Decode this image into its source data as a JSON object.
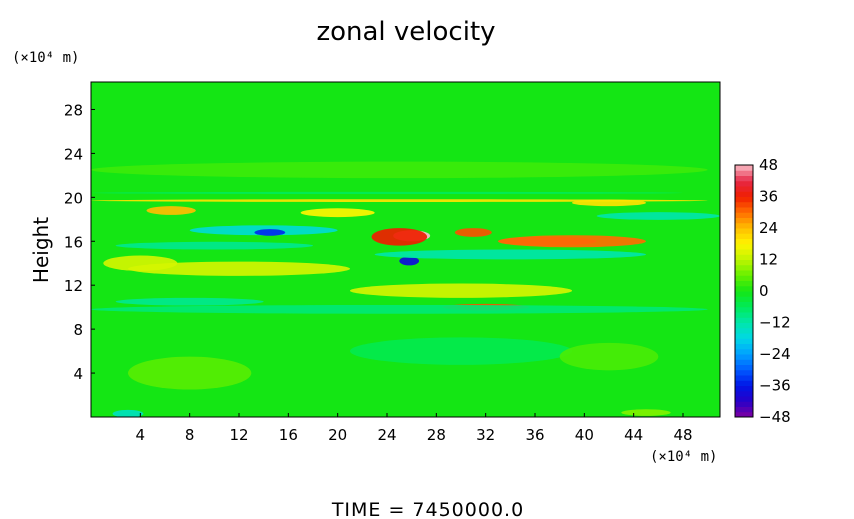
{
  "chart_data": {
    "type": "heatmap",
    "title": "zonal velocity",
    "ylabel": "Height",
    "x_unit_label": "(×10⁴ m)",
    "y_unit_label": "(×10⁴ m)",
    "xlim": [
      0,
      51
    ],
    "ylim": [
      0,
      30.5
    ],
    "x_ticks": [
      4,
      8,
      12,
      16,
      20,
      24,
      28,
      32,
      36,
      40,
      44,
      48
    ],
    "y_ticks": [
      4,
      8,
      12,
      16,
      20,
      24,
      28
    ],
    "colorbar": {
      "min": -48,
      "max": 48,
      "ticks": [
        48,
        36,
        24,
        12,
        0,
        -12,
        -24,
        -36,
        -48
      ]
    },
    "features": [
      {
        "cx": 26.0,
        "cy": 16.5,
        "w": 3.0,
        "h": 1.0,
        "v": 48
      },
      {
        "cx": 37.0,
        "cy": 16.0,
        "w": 8.0,
        "h": 0.8,
        "v": 42
      },
      {
        "cx": 25.0,
        "cy": 16.4,
        "w": 4.5,
        "h": 1.6,
        "v": 36
      },
      {
        "cx": 39.0,
        "cy": 16.0,
        "w": 12.0,
        "h": 1.1,
        "v": 30
      },
      {
        "cx": 31.0,
        "cy": 16.8,
        "w": 3.0,
        "h": 0.8,
        "v": 32
      },
      {
        "cx": 32.0,
        "cy": 10.0,
        "w": 7.0,
        "h": 0.6,
        "v": 32
      },
      {
        "cx": 42.0,
        "cy": 19.5,
        "w": 6.0,
        "h": 0.6,
        "v": 20
      },
      {
        "cx": 6.5,
        "cy": 18.8,
        "w": 4.0,
        "h": 0.8,
        "v": 24
      },
      {
        "cx": 20.0,
        "cy": 18.6,
        "w": 6.0,
        "h": 0.8,
        "v": 18
      },
      {
        "cx": 12.0,
        "cy": 13.5,
        "w": 18.0,
        "h": 1.3,
        "v": 14
      },
      {
        "cx": 30.0,
        "cy": 11.5,
        "w": 18.0,
        "h": 1.3,
        "v": 14
      },
      {
        "cx": 4.0,
        "cy": 14.0,
        "w": 6.0,
        "h": 1.4,
        "v": 14
      },
      {
        "cx": 25.0,
        "cy": 19.7,
        "w": 50.0,
        "h": 0.25,
        "v": 20
      },
      {
        "cx": 24.0,
        "cy": 20.4,
        "w": 48.0,
        "h": 0.2,
        "v": -6
      },
      {
        "cx": 14.0,
        "cy": 17.0,
        "w": 12.0,
        "h": 0.9,
        "v": -16
      },
      {
        "cx": 14.5,
        "cy": 16.8,
        "w": 2.5,
        "h": 0.6,
        "v": -34
      },
      {
        "cx": 25.8,
        "cy": 14.2,
        "w": 1.6,
        "h": 0.8,
        "v": -38
      },
      {
        "cx": 34.0,
        "cy": 14.8,
        "w": 22.0,
        "h": 0.9,
        "v": -12
      },
      {
        "cx": 10.0,
        "cy": 15.6,
        "w": 16.0,
        "h": 0.7,
        "v": -10
      },
      {
        "cx": 25.0,
        "cy": 9.8,
        "w": 50.0,
        "h": 0.8,
        "v": -8
      },
      {
        "cx": 8.0,
        "cy": 10.5,
        "w": 12.0,
        "h": 0.7,
        "v": -10
      },
      {
        "cx": 46.0,
        "cy": 18.3,
        "w": 10.0,
        "h": 0.7,
        "v": -12
      },
      {
        "cx": 25.0,
        "cy": 22.5,
        "w": 50.0,
        "h": 1.5,
        "v": 3
      },
      {
        "cx": 30.0,
        "cy": 6.0,
        "w": 18.0,
        "h": 2.5,
        "v": -5
      },
      {
        "cx": 8.0,
        "cy": 4.0,
        "w": 10.0,
        "h": 3.0,
        "v": 5
      },
      {
        "cx": 42.0,
        "cy": 5.5,
        "w": 8.0,
        "h": 2.5,
        "v": 4
      },
      {
        "cx": 3.0,
        "cy": 0.3,
        "w": 2.5,
        "h": 0.7,
        "v": -14
      },
      {
        "cx": 45.0,
        "cy": 0.4,
        "w": 4.0,
        "h": 0.6,
        "v": 8
      }
    ]
  },
  "footer": {
    "time_label": "TIME  =  7450000.0"
  }
}
